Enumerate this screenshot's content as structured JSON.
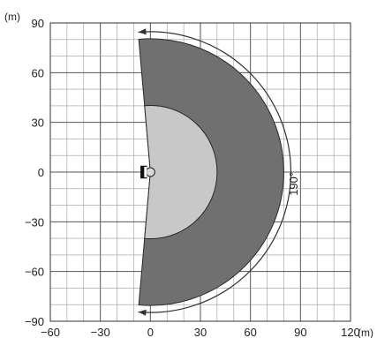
{
  "chart_data": {
    "type": "area",
    "xlim": [
      -60,
      120
    ],
    "ylim": [
      -90,
      90
    ],
    "x_ticks": [
      -60,
      -30,
      0,
      30,
      60,
      90,
      120
    ],
    "y_ticks": [
      90,
      60,
      30,
      0,
      -30,
      -60,
      -90
    ],
    "x_tick_labels": [
      "−60",
      "−30",
      "0",
      "30",
      "60",
      "90",
      "120"
    ],
    "y_tick_labels": [
      "90",
      "60",
      "30",
      "0",
      "−30",
      "−60",
      "−90"
    ],
    "x_unit": "(m)",
    "y_unit": "(m)",
    "minor_grid_step": 10,
    "major_grid_step": 30,
    "grid": true,
    "fields": [
      {
        "radius": 80,
        "angle_deg": 190,
        "color": "#707070"
      },
      {
        "radius": 40,
        "angle_deg": 190,
        "color": "#c8c8c8"
      }
    ],
    "angle_label": "190°",
    "sensor_position": [
      0,
      0
    ]
  }
}
